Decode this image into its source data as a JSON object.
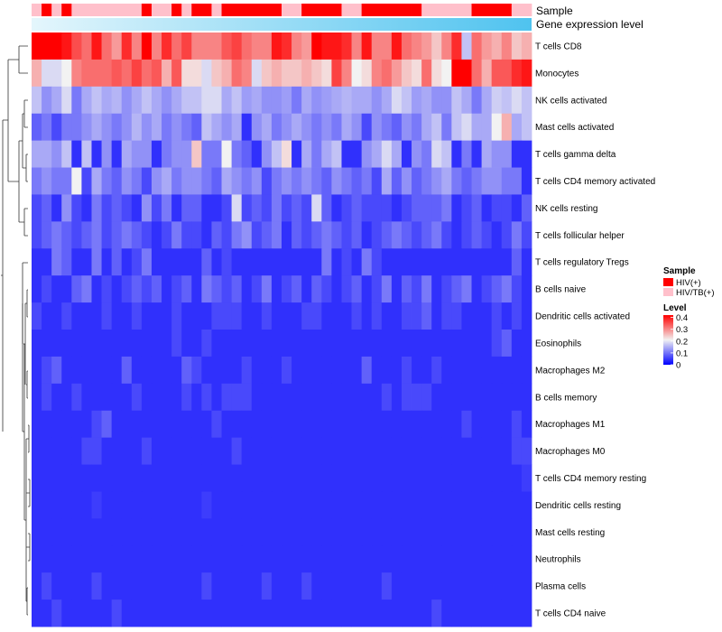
{
  "chart_data": {
    "type": "heatmap",
    "annotation_rows": {
      "sample": {
        "label": "Sample",
        "values": [
          "HIV/TB(+)",
          "HIV(+)",
          "HIV/TB(+)",
          "HIV(+)",
          "HIV/TB(+)",
          "HIV/TB(+)",
          "HIV/TB(+)",
          "HIV/TB(+)",
          "HIV/TB(+)",
          "HIV/TB(+)",
          "HIV/TB(+)",
          "HIV(+)",
          "HIV/TB(+)",
          "HIV/TB(+)",
          "HIV(+)",
          "HIV/TB(+)",
          "HIV(+)",
          "HIV(+)",
          "HIV/TB(+)",
          "HIV(+)",
          "HIV(+)",
          "HIV(+)",
          "HIV(+)",
          "HIV(+)",
          "HIV(+)",
          "HIV/TB(+)",
          "HIV/TB(+)",
          "HIV(+)",
          "HIV(+)",
          "HIV(+)",
          "HIV(+)",
          "HIV/TB(+)",
          "HIV/TB(+)",
          "HIV(+)",
          "HIV(+)",
          "HIV(+)",
          "HIV(+)",
          "HIV(+)",
          "HIV(+)",
          "HIV/TB(+)",
          "HIV/TB(+)",
          "HIV/TB(+)",
          "HIV/TB(+)",
          "HIV/TB(+)",
          "HIV(+)",
          "HIV(+)",
          "HIV(+)",
          "HIV(+)",
          "HIV/TB(+)",
          "HIV/TB(+)"
        ]
      },
      "gene_expression": {
        "label": "Gene expression level",
        "gradient": [
          "#e4f6fc",
          "#4fc3ef"
        ]
      }
    },
    "rows": [
      "T cells CD8",
      "Monocytes",
      "NK cells activated",
      "Mast cells activated",
      "T cells gamma delta",
      "T cells CD4 memory activated",
      "NK cells resting",
      "T cells follicular helper",
      "T cells regulatory  Tregs",
      "B cells naive",
      "Dendritic cells activated",
      "Eosinophils",
      "Macrophages M2",
      "B cells memory",
      "Macrophages M1",
      "Macrophages M0",
      "T cells CD4 memory resting",
      "Dendritic cells resting",
      "Mast cells resting",
      "Neutrophils",
      "Plasma cells",
      "T cells CD4 naive"
    ],
    "values": [
      [
        0.42,
        0.42,
        0.42,
        0.4,
        0.35,
        0.32,
        0.4,
        0.32,
        0.28,
        0.38,
        0.3,
        0.42,
        0.3,
        0.38,
        0.32,
        0.36,
        0.3,
        0.3,
        0.3,
        0.34,
        0.36,
        0.32,
        0.3,
        0.3,
        0.4,
        0.38,
        0.3,
        0.28,
        0.42,
        0.4,
        0.4,
        0.38,
        0.3,
        0.4,
        0.3,
        0.3,
        0.4,
        0.32,
        0.3,
        0.28,
        0.24,
        0.3,
        0.38,
        0.16,
        0.32,
        0.28,
        0.26,
        0.3,
        0.24,
        0.26
      ],
      [
        0.26,
        0.18,
        0.18,
        0.2,
        0.3,
        0.32,
        0.32,
        0.32,
        0.34,
        0.32,
        0.36,
        0.32,
        0.34,
        0.26,
        0.34,
        0.22,
        0.22,
        0.18,
        0.24,
        0.26,
        0.32,
        0.3,
        0.18,
        0.24,
        0.26,
        0.24,
        0.24,
        0.26,
        0.24,
        0.22,
        0.36,
        0.3,
        0.2,
        0.22,
        0.3,
        0.32,
        0.28,
        0.24,
        0.22,
        0.32,
        0.22,
        0.2,
        0.42,
        0.42,
        0.32,
        0.26,
        0.34,
        0.34,
        0.38,
        0.4
      ],
      [
        0.16,
        0.12,
        0.14,
        0.18,
        0.1,
        0.14,
        0.16,
        0.14,
        0.15,
        0.12,
        0.14,
        0.16,
        0.14,
        0.12,
        0.14,
        0.16,
        0.16,
        0.18,
        0.18,
        0.14,
        0.16,
        0.13,
        0.14,
        0.12,
        0.12,
        0.13,
        0.1,
        0.14,
        0.12,
        0.13,
        0.14,
        0.15,
        0.14,
        0.14,
        0.12,
        0.14,
        0.18,
        0.16,
        0.13,
        0.14,
        0.12,
        0.12,
        0.16,
        0.14,
        0.1,
        0.14,
        0.17,
        0.16,
        0.18,
        0.16
      ],
      [
        0.08,
        0.1,
        0.06,
        0.1,
        0.1,
        0.12,
        0.14,
        0.12,
        0.1,
        0.12,
        0.15,
        0.12,
        0.14,
        0.1,
        0.12,
        0.1,
        0.08,
        0.16,
        0.14,
        0.12,
        0.14,
        0.04,
        0.12,
        0.14,
        0.1,
        0.12,
        0.14,
        0.12,
        0.1,
        0.12,
        0.1,
        0.14,
        0.12,
        0.06,
        0.12,
        0.1,
        0.08,
        0.12,
        0.1,
        0.14,
        0.16,
        0.1,
        0.16,
        0.18,
        0.14,
        0.14,
        0.2,
        0.26,
        0.14,
        0.16
      ],
      [
        0.14,
        0.14,
        0.12,
        0.16,
        0.04,
        0.16,
        0.04,
        0.12,
        0.04,
        0.14,
        0.12,
        0.12,
        0.04,
        0.1,
        0.12,
        0.12,
        0.24,
        0.1,
        0.1,
        0.2,
        0.1,
        0.08,
        0.04,
        0.12,
        0.16,
        0.22,
        0.04,
        0.14,
        0.1,
        0.14,
        0.16,
        0.04,
        0.04,
        0.12,
        0.14,
        0.18,
        0.14,
        0.04,
        0.12,
        0.1,
        0.18,
        0.16,
        0.04,
        0.1,
        0.04,
        0.14,
        0.12,
        0.12,
        0.04,
        0.04
      ],
      [
        0.1,
        0.12,
        0.1,
        0.1,
        0.2,
        0.06,
        0.14,
        0.1,
        0.08,
        0.12,
        0.1,
        0.06,
        0.12,
        0.14,
        0.1,
        0.12,
        0.12,
        0.1,
        0.08,
        0.14,
        0.12,
        0.1,
        0.12,
        0.06,
        0.1,
        0.12,
        0.1,
        0.12,
        0.1,
        0.08,
        0.12,
        0.1,
        0.08,
        0.1,
        0.06,
        0.14,
        0.08,
        0.12,
        0.08,
        0.1,
        0.12,
        0.14,
        0.1,
        0.08,
        0.1,
        0.12,
        0.12,
        0.1,
        0.1,
        0.04
      ],
      [
        0.06,
        0.08,
        0.04,
        0.12,
        0.06,
        0.04,
        0.1,
        0.06,
        0.08,
        0.06,
        0.04,
        0.12,
        0.06,
        0.1,
        0.04,
        0.08,
        0.08,
        0.04,
        0.04,
        0.06,
        0.18,
        0.06,
        0.08,
        0.06,
        0.1,
        0.06,
        0.08,
        0.06,
        0.18,
        0.08,
        0.04,
        0.06,
        0.08,
        0.06,
        0.06,
        0.06,
        0.04,
        0.06,
        0.08,
        0.08,
        0.08,
        0.1,
        0.04,
        0.06,
        0.08,
        0.04,
        0.06,
        0.06,
        0.04,
        0.08
      ],
      [
        0.06,
        0.08,
        0.1,
        0.08,
        0.06,
        0.08,
        0.1,
        0.06,
        0.08,
        0.1,
        0.08,
        0.06,
        0.04,
        0.06,
        0.1,
        0.06,
        0.06,
        0.04,
        0.08,
        0.06,
        0.1,
        0.12,
        0.06,
        0.08,
        0.1,
        0.04,
        0.08,
        0.06,
        0.08,
        0.1,
        0.08,
        0.06,
        0.08,
        0.04,
        0.06,
        0.08,
        0.1,
        0.08,
        0.06,
        0.08,
        0.1,
        0.06,
        0.04,
        0.06,
        0.08,
        0.06,
        0.04,
        0.06,
        0.1,
        0.06
      ],
      [
        0.04,
        0.04,
        0.1,
        0.08,
        0.04,
        0.04,
        0.1,
        0.04,
        0.08,
        0.04,
        0.06,
        0.1,
        0.04,
        0.04,
        0.04,
        0.04,
        0.04,
        0.08,
        0.04,
        0.06,
        0.04,
        0.04,
        0.04,
        0.04,
        0.04,
        0.04,
        0.04,
        0.04,
        0.04,
        0.1,
        0.04,
        0.06,
        0.04,
        0.1,
        0.06,
        0.04,
        0.04,
        0.04,
        0.04,
        0.04,
        0.04,
        0.04,
        0.04,
        0.04,
        0.04,
        0.04,
        0.04,
        0.04,
        0.08,
        0.04
      ],
      [
        0.04,
        0.06,
        0.04,
        0.04,
        0.08,
        0.1,
        0.04,
        0.06,
        0.04,
        0.06,
        0.08,
        0.06,
        0.08,
        0.04,
        0.06,
        0.08,
        0.04,
        0.1,
        0.08,
        0.06,
        0.08,
        0.04,
        0.06,
        0.1,
        0.04,
        0.06,
        0.08,
        0.04,
        0.08,
        0.06,
        0.04,
        0.06,
        0.08,
        0.04,
        0.06,
        0.1,
        0.04,
        0.08,
        0.06,
        0.1,
        0.04,
        0.06,
        0.08,
        0.1,
        0.04,
        0.06,
        0.08,
        0.1,
        0.06,
        0.04
      ],
      [
        0.06,
        0.04,
        0.04,
        0.06,
        0.04,
        0.04,
        0.04,
        0.06,
        0.04,
        0.04,
        0.06,
        0.04,
        0.04,
        0.04,
        0.06,
        0.04,
        0.04,
        0.04,
        0.06,
        0.06,
        0.06,
        0.04,
        0.04,
        0.06,
        0.04,
        0.04,
        0.04,
        0.06,
        0.06,
        0.04,
        0.04,
        0.04,
        0.06,
        0.04,
        0.06,
        0.04,
        0.04,
        0.06,
        0.06,
        0.08,
        0.04,
        0.06,
        0.06,
        0.04,
        0.04,
        0.04,
        0.06,
        0.04,
        0.06,
        0.04
      ],
      [
        0.04,
        0.04,
        0.04,
        0.04,
        0.04,
        0.04,
        0.04,
        0.04,
        0.04,
        0.04,
        0.04,
        0.04,
        0.04,
        0.04,
        0.06,
        0.04,
        0.04,
        0.06,
        0.04,
        0.04,
        0.04,
        0.04,
        0.04,
        0.04,
        0.04,
        0.04,
        0.04,
        0.04,
        0.04,
        0.04,
        0.04,
        0.04,
        0.04,
        0.04,
        0.04,
        0.04,
        0.04,
        0.04,
        0.04,
        0.04,
        0.04,
        0.04,
        0.04,
        0.04,
        0.04,
        0.04,
        0.06,
        0.08,
        0.04,
        0.04
      ],
      [
        0.04,
        0.06,
        0.08,
        0.04,
        0.04,
        0.04,
        0.04,
        0.04,
        0.04,
        0.08,
        0.04,
        0.04,
        0.04,
        0.04,
        0.04,
        0.08,
        0.06,
        0.04,
        0.04,
        0.04,
        0.04,
        0.06,
        0.04,
        0.04,
        0.04,
        0.06,
        0.04,
        0.04,
        0.04,
        0.04,
        0.04,
        0.04,
        0.04,
        0.08,
        0.04,
        0.04,
        0.04,
        0.06,
        0.04,
        0.04,
        0.06,
        0.04,
        0.04,
        0.04,
        0.04,
        0.04,
        0.04,
        0.04,
        0.04,
        0.04
      ],
      [
        0.04,
        0.06,
        0.04,
        0.04,
        0.06,
        0.04,
        0.04,
        0.04,
        0.04,
        0.04,
        0.06,
        0.04,
        0.04,
        0.04,
        0.04,
        0.06,
        0.04,
        0.06,
        0.04,
        0.06,
        0.06,
        0.06,
        0.04,
        0.04,
        0.04,
        0.04,
        0.04,
        0.04,
        0.04,
        0.04,
        0.04,
        0.04,
        0.04,
        0.04,
        0.04,
        0.06,
        0.04,
        0.06,
        0.06,
        0.06,
        0.04,
        0.04,
        0.04,
        0.04,
        0.04,
        0.04,
        0.04,
        0.04,
        0.04,
        0.04
      ],
      [
        0.04,
        0.04,
        0.04,
        0.04,
        0.04,
        0.04,
        0.06,
        0.08,
        0.04,
        0.04,
        0.04,
        0.04,
        0.04,
        0.04,
        0.04,
        0.04,
        0.04,
        0.04,
        0.06,
        0.04,
        0.04,
        0.04,
        0.04,
        0.04,
        0.04,
        0.04,
        0.04,
        0.04,
        0.04,
        0.04,
        0.04,
        0.04,
        0.04,
        0.04,
        0.04,
        0.04,
        0.04,
        0.04,
        0.04,
        0.04,
        0.04,
        0.04,
        0.04,
        0.06,
        0.04,
        0.04,
        0.04,
        0.04,
        0.06,
        0.04
      ],
      [
        0.04,
        0.04,
        0.04,
        0.04,
        0.04,
        0.06,
        0.06,
        0.04,
        0.04,
        0.04,
        0.04,
        0.06,
        0.04,
        0.04,
        0.04,
        0.04,
        0.04,
        0.04,
        0.04,
        0.04,
        0.06,
        0.04,
        0.04,
        0.04,
        0.04,
        0.04,
        0.04,
        0.04,
        0.04,
        0.04,
        0.04,
        0.04,
        0.04,
        0.04,
        0.04,
        0.04,
        0.04,
        0.04,
        0.04,
        0.04,
        0.04,
        0.04,
        0.04,
        0.04,
        0.04,
        0.04,
        0.04,
        0.04,
        0.06,
        0.06
      ],
      [
        0.04,
        0.04,
        0.04,
        0.04,
        0.04,
        0.04,
        0.04,
        0.04,
        0.04,
        0.04,
        0.04,
        0.04,
        0.04,
        0.04,
        0.04,
        0.04,
        0.04,
        0.04,
        0.04,
        0.04,
        0.04,
        0.04,
        0.04,
        0.04,
        0.04,
        0.04,
        0.04,
        0.04,
        0.04,
        0.04,
        0.04,
        0.04,
        0.04,
        0.04,
        0.04,
        0.04,
        0.04,
        0.04,
        0.04,
        0.04,
        0.04,
        0.04,
        0.04,
        0.04,
        0.04,
        0.04,
        0.04,
        0.04,
        0.04,
        0.05
      ],
      [
        0.04,
        0.04,
        0.04,
        0.04,
        0.04,
        0.04,
        0.05,
        0.04,
        0.04,
        0.04,
        0.04,
        0.04,
        0.04,
        0.04,
        0.04,
        0.04,
        0.04,
        0.05,
        0.04,
        0.04,
        0.04,
        0.04,
        0.04,
        0.04,
        0.04,
        0.04,
        0.04,
        0.04,
        0.04,
        0.04,
        0.04,
        0.04,
        0.04,
        0.04,
        0.04,
        0.04,
        0.04,
        0.04,
        0.04,
        0.04,
        0.04,
        0.04,
        0.04,
        0.04,
        0.04,
        0.04,
        0.04,
        0.04,
        0.04,
        0.04
      ],
      [
        0.04,
        0.04,
        0.04,
        0.04,
        0.04,
        0.04,
        0.04,
        0.04,
        0.04,
        0.04,
        0.04,
        0.04,
        0.04,
        0.04,
        0.04,
        0.04,
        0.04,
        0.04,
        0.04,
        0.04,
        0.04,
        0.04,
        0.04,
        0.04,
        0.04,
        0.04,
        0.04,
        0.04,
        0.04,
        0.04,
        0.04,
        0.04,
        0.04,
        0.04,
        0.04,
        0.04,
        0.04,
        0.04,
        0.04,
        0.04,
        0.04,
        0.04,
        0.04,
        0.04,
        0.04,
        0.04,
        0.04,
        0.04,
        0.04,
        0.04
      ],
      [
        0.04,
        0.04,
        0.04,
        0.04,
        0.04,
        0.04,
        0.04,
        0.04,
        0.04,
        0.04,
        0.04,
        0.04,
        0.04,
        0.04,
        0.04,
        0.04,
        0.04,
        0.04,
        0.04,
        0.04,
        0.04,
        0.04,
        0.04,
        0.04,
        0.04,
        0.04,
        0.04,
        0.04,
        0.04,
        0.04,
        0.04,
        0.04,
        0.04,
        0.04,
        0.04,
        0.04,
        0.04,
        0.04,
        0.04,
        0.04,
        0.04,
        0.04,
        0.04,
        0.04,
        0.04,
        0.04,
        0.04,
        0.04,
        0.04,
        0.04
      ],
      [
        0.04,
        0.06,
        0.04,
        0.04,
        0.04,
        0.04,
        0.06,
        0.04,
        0.04,
        0.04,
        0.04,
        0.04,
        0.04,
        0.04,
        0.04,
        0.04,
        0.04,
        0.06,
        0.04,
        0.04,
        0.04,
        0.04,
        0.04,
        0.06,
        0.04,
        0.04,
        0.04,
        0.06,
        0.04,
        0.04,
        0.04,
        0.04,
        0.04,
        0.04,
        0.04,
        0.06,
        0.04,
        0.04,
        0.04,
        0.04,
        0.04,
        0.04,
        0.04,
        0.04,
        0.04,
        0.04,
        0.04,
        0.04,
        0.04,
        0.04
      ],
      [
        0.04,
        0.04,
        0.06,
        0.04,
        0.04,
        0.04,
        0.04,
        0.04,
        0.06,
        0.04,
        0.04,
        0.04,
        0.04,
        0.04,
        0.04,
        0.04,
        0.04,
        0.04,
        0.04,
        0.04,
        0.04,
        0.04,
        0.04,
        0.04,
        0.04,
        0.04,
        0.04,
        0.04,
        0.04,
        0.04,
        0.04,
        0.04,
        0.04,
        0.04,
        0.04,
        0.04,
        0.04,
        0.04,
        0.04,
        0.04,
        0.06,
        0.04,
        0.04,
        0.04,
        0.04,
        0.04,
        0.04,
        0.04,
        0.04,
        0.04
      ]
    ],
    "color_scale": {
      "min": 0,
      "mid": 0.2,
      "max": 0.42,
      "colors": [
        "#0000ff",
        "#f2f2f2",
        "#ff0000"
      ]
    },
    "sample_colors": {
      "HIV(+)": "#ff0000",
      "HIV/TB(+)": "#ffc0cb"
    },
    "legend": {
      "sample_title": "Sample",
      "sample_entries": [
        "HIV(+)",
        "HIV/TB(+)"
      ],
      "level_title": "Level",
      "level_ticks": [
        "0.4",
        "0.3",
        "0.2",
        "0.1",
        "0"
      ],
      "level_tick_values": [
        0.4,
        0.3,
        0.2,
        0.1,
        0
      ]
    }
  }
}
